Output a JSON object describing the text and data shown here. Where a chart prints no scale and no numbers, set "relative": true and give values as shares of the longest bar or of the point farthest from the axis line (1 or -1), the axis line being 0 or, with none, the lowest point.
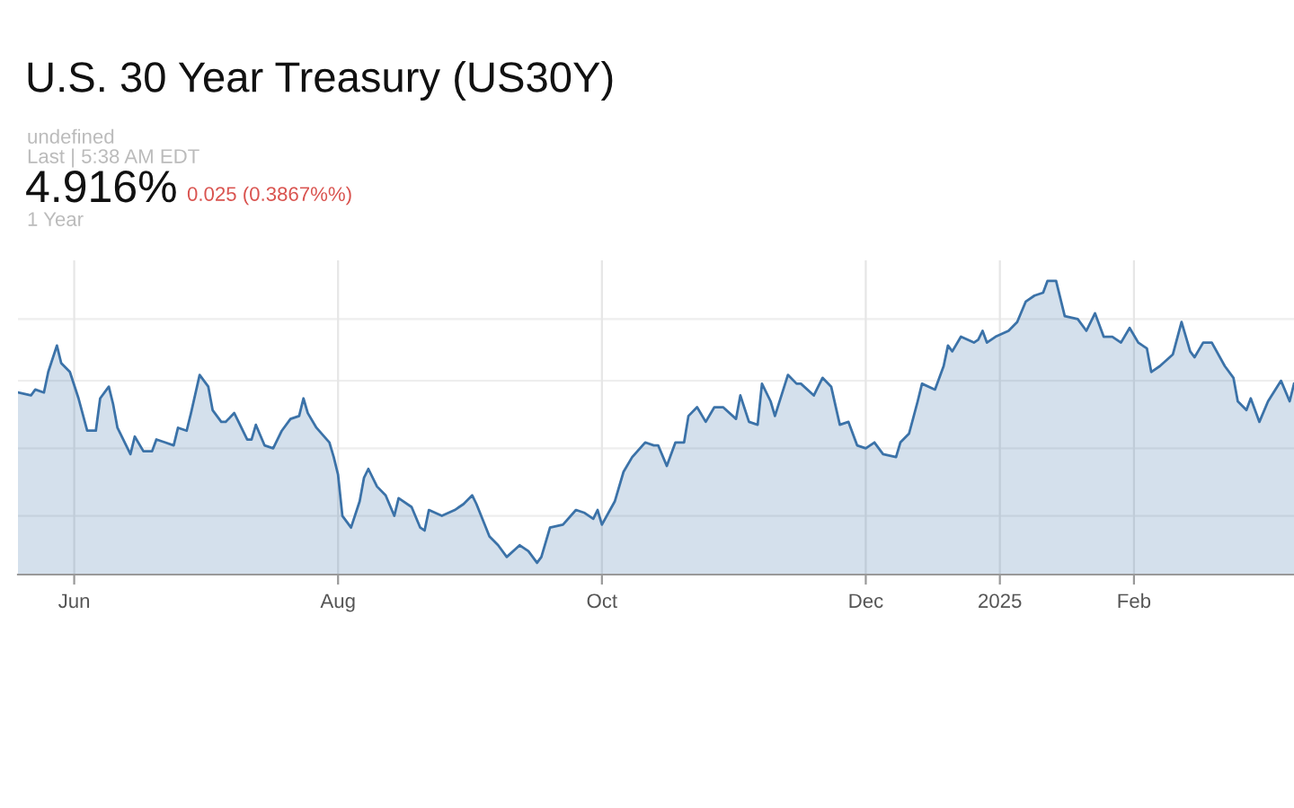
{
  "chart_data": {
    "type": "area",
    "title": "U.S. 30 Year Treasury (US30Y)",
    "annotations": [
      "undefined",
      "Last | 5:38 AM EDT",
      "4.916%",
      "0.025 (0.3867%%)",
      "1 Year"
    ],
    "relative": true,
    "grid": true,
    "xlim": [
      "2024-05-19",
      "2025-03-10"
    ],
    "xticks": [
      {
        "value": "2024-06-01",
        "label": "Jun"
      },
      {
        "value": "2024-08-01",
        "label": "Aug"
      },
      {
        "value": "2024-10-01",
        "label": "Oct"
      },
      {
        "value": "2024-12-01",
        "label": "Dec"
      },
      {
        "value": "2025-01-01",
        "label": "2025"
      },
      {
        "value": "2025-02-01",
        "label": "Feb"
      }
    ],
    "series": [
      {
        "color": "#3b72a8",
        "x": [
          "2024-05-19",
          "2024-05-22",
          "2024-05-23",
          "2024-05-25",
          "2024-05-26",
          "2024-05-28",
          "2024-05-29",
          "2024-05-31",
          "2024-06-02",
          "2024-06-04",
          "2024-06-06",
          "2024-06-07",
          "2024-06-09",
          "2024-06-10",
          "2024-06-11",
          "2024-06-14",
          "2024-06-15",
          "2024-06-17",
          "2024-06-19",
          "2024-06-20",
          "2024-06-22",
          "2024-06-24",
          "2024-06-25",
          "2024-06-27",
          "2024-06-28",
          "2024-06-30",
          "2024-07-02",
          "2024-07-03",
          "2024-07-05",
          "2024-07-06",
          "2024-07-08",
          "2024-07-09",
          "2024-07-11",
          "2024-07-12",
          "2024-07-13",
          "2024-07-15",
          "2024-07-17",
          "2024-07-19",
          "2024-07-21",
          "2024-07-23",
          "2024-07-24",
          "2024-07-25",
          "2024-07-27",
          "2024-07-30",
          "2024-07-31",
          "2024-08-01",
          "2024-08-02",
          "2024-08-04",
          "2024-08-06",
          "2024-08-07",
          "2024-08-08",
          "2024-08-10",
          "2024-08-12",
          "2024-08-14",
          "2024-08-15",
          "2024-08-18",
          "2024-08-20",
          "2024-08-21",
          "2024-08-22",
          "2024-08-25",
          "2024-08-28",
          "2024-08-30",
          "2024-09-01",
          "2024-09-02",
          "2024-09-05",
          "2024-09-07",
          "2024-09-09",
          "2024-09-12",
          "2024-09-14",
          "2024-09-16",
          "2024-09-17",
          "2024-09-19",
          "2024-09-22",
          "2024-09-25",
          "2024-09-27",
          "2024-09-29",
          "2024-09-30",
          "2024-10-01",
          "2024-10-04",
          "2024-10-06",
          "2024-10-08",
          "2024-10-11",
          "2024-10-13",
          "2024-10-14",
          "2024-10-16",
          "2024-10-18",
          "2024-10-20",
          "2024-10-21",
          "2024-10-23",
          "2024-10-25",
          "2024-10-27",
          "2024-10-29",
          "2024-11-01",
          "2024-11-02",
          "2024-11-04",
          "2024-11-06",
          "2024-11-07",
          "2024-11-09",
          "2024-11-10",
          "2024-11-13",
          "2024-11-15",
          "2024-11-16",
          "2024-11-19",
          "2024-11-21",
          "2024-11-23",
          "2024-11-25",
          "2024-11-27",
          "2024-11-29",
          "2024-12-01",
          "2024-12-03",
          "2024-12-05",
          "2024-12-08",
          "2024-12-09",
          "2024-12-11",
          "2024-12-13",
          "2024-12-14",
          "2024-12-17",
          "2024-12-19",
          "2024-12-20",
          "2024-12-21",
          "2024-12-23",
          "2024-12-26",
          "2024-12-27",
          "2024-12-28",
          "2024-12-29",
          "2024-12-31",
          "2025-01-03",
          "2025-01-05",
          "2025-01-07",
          "2025-01-09",
          "2025-01-11",
          "2025-01-12",
          "2025-01-14",
          "2025-01-16",
          "2025-01-19",
          "2025-01-21",
          "2025-01-23",
          "2025-01-25",
          "2025-01-27",
          "2025-01-29",
          "2025-01-31",
          "2025-02-02",
          "2025-02-04",
          "2025-02-05",
          "2025-02-07",
          "2025-02-10",
          "2025-02-12",
          "2025-02-14",
          "2025-02-15",
          "2025-02-17",
          "2025-02-19",
          "2025-02-22",
          "2025-02-24",
          "2025-02-25",
          "2025-02-27",
          "2025-02-28",
          "2025-03-02",
          "2025-03-04",
          "2025-03-07",
          "2025-03-09",
          "2025-03-10"
        ],
        "values": [
          0.62,
          0.61,
          0.63,
          0.62,
          0.69,
          0.78,
          0.72,
          0.69,
          0.6,
          0.49,
          0.49,
          0.6,
          0.64,
          0.58,
          0.5,
          0.41,
          0.47,
          0.42,
          0.42,
          0.46,
          0.45,
          0.44,
          0.5,
          0.49,
          0.55,
          0.68,
          0.64,
          0.56,
          0.52,
          0.52,
          0.55,
          0.52,
          0.46,
          0.46,
          0.51,
          0.44,
          0.43,
          0.49,
          0.53,
          0.54,
          0.6,
          0.55,
          0.5,
          0.45,
          0.4,
          0.34,
          0.2,
          0.16,
          0.25,
          0.33,
          0.36,
          0.3,
          0.27,
          0.2,
          0.26,
          0.23,
          0.16,
          0.15,
          0.22,
          0.2,
          0.22,
          0.24,
          0.27,
          0.24,
          0.13,
          0.1,
          0.06,
          0.1,
          0.08,
          0.04,
          0.06,
          0.16,
          0.17,
          0.22,
          0.21,
          0.19,
          0.22,
          0.17,
          0.25,
          0.35,
          0.4,
          0.45,
          0.44,
          0.44,
          0.37,
          0.45,
          0.45,
          0.54,
          0.57,
          0.52,
          0.57,
          0.57,
          0.53,
          0.61,
          0.52,
          0.51,
          0.65,
          0.59,
          0.54,
          0.68,
          0.65,
          0.65,
          0.61,
          0.67,
          0.64,
          0.51,
          0.52,
          0.44,
          0.43,
          0.45,
          0.41,
          0.4,
          0.45,
          0.48,
          0.59,
          0.65,
          0.63,
          0.71,
          0.78,
          0.76,
          0.81,
          0.79,
          0.8,
          0.83,
          0.79,
          0.81,
          0.83,
          0.86,
          0.93,
          0.95,
          0.96,
          1.0,
          1.0,
          0.88,
          0.87,
          0.83,
          0.89,
          0.81,
          0.81,
          0.79,
          0.84,
          0.79,
          0.77,
          0.69,
          0.71,
          0.75,
          0.86,
          0.76,
          0.74,
          0.79,
          0.79,
          0.71,
          0.67,
          0.59,
          0.56,
          0.6,
          0.52,
          0.59,
          0.66,
          0.59,
          0.65
        ]
      }
    ]
  }
}
